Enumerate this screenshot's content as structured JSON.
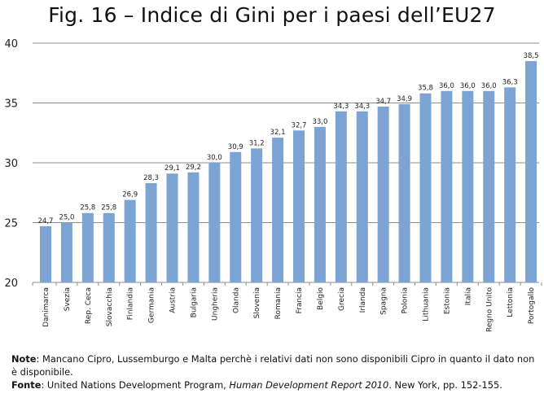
{
  "title": "Fig. 16 – Indice di Gini per i paesi dell’EU27",
  "chart_data": {
    "type": "bar",
    "categories": [
      "Danimarca",
      "Svezia",
      "Rep. Ceca",
      "Slovacchia",
      "Finlandia",
      "Germania",
      "Austria",
      "Bulgaria",
      "Ungheria",
      "Olanda",
      "Slovenia",
      "Romania",
      "Francia",
      "Belgio",
      "Grecia",
      "Irlanda",
      "Spagna",
      "Polonia",
      "Lithuania",
      "Estonia",
      "Italia",
      "Regno Unito",
      "Lettonia",
      "Portogallo"
    ],
    "values": [
      24.7,
      25.0,
      25.8,
      25.8,
      26.9,
      28.3,
      29.1,
      29.2,
      30.0,
      30.9,
      31.2,
      32.1,
      32.7,
      33.0,
      34.3,
      34.3,
      34.7,
      34.9,
      35.8,
      36.0,
      36.0,
      36.0,
      36.3,
      38.5
    ],
    "data_labels": [
      "24,7",
      "25,0",
      "25,8",
      "25,8",
      "26,9",
      "28,3",
      "29,1",
      "29,2",
      "30,0",
      "30,9",
      "31,2",
      "32,1",
      "32,7",
      "33,0",
      "34,3",
      "34,3",
      "34,7",
      "34,9",
      "35,8",
      "36,0",
      "36,0",
      "36,0",
      "36,3",
      "38,5"
    ],
    "yticks": [
      20,
      25,
      30,
      35,
      40
    ],
    "ylim": [
      20,
      40
    ],
    "grid": true,
    "bar_color": "#7ba3d4",
    "grid_color": "#8c8c8c"
  },
  "note": {
    "label": "Note",
    "text": ": Mancano Cipro, Lussemburgo e Malta perchè i relativi dati non sono disponibili Cipro in quanto il dato non è disponibile."
  },
  "source": {
    "label": "Fonte",
    "text_before": ": United Nations Development Program, ",
    "title": "Human Development Report 2010",
    "text_after": ". New York, pp. 152-155."
  }
}
